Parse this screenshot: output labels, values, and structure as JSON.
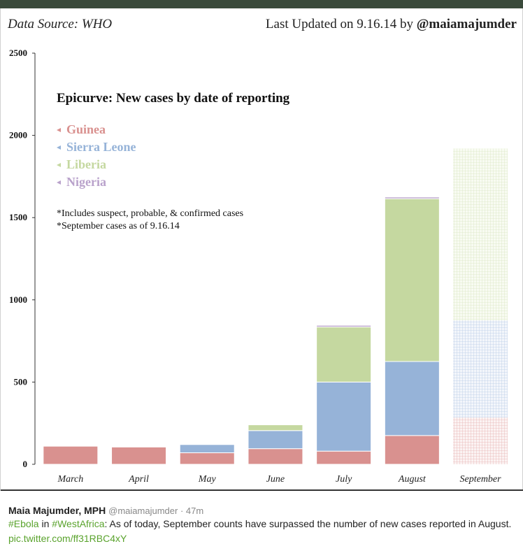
{
  "header": {
    "source_text": "Data Source: WHO",
    "updated_text": "Last Updated on 9.16.14 by",
    "handle": "@maiamajumder"
  },
  "chart_data": {
    "type": "bar",
    "stacked": true,
    "title": "Epicurve: New cases by date of reporting",
    "notes": [
      "*Includes suspect, probable, & confirmed cases",
      "*September cases as of 9.16.14"
    ],
    "categories": [
      "March",
      "April",
      "May",
      "June",
      "July",
      "August",
      "September"
    ],
    "yticks": [
      "0",
      "500",
      "1000",
      "1500",
      "2000",
      "2500"
    ],
    "ylim": [
      0,
      2500
    ],
    "series": [
      {
        "name": "Guinea",
        "color": "#d9918f",
        "values": [
          110,
          105,
          70,
          95,
          80,
          175,
          285
        ]
      },
      {
        "name": "Sierra Leone",
        "color": "#96b3d8",
        "values": [
          0,
          0,
          50,
          110,
          420,
          450,
          590
        ]
      },
      {
        "name": "Liberia",
        "color": "#c5d8a0",
        "values": [
          0,
          0,
          0,
          35,
          335,
          990,
          1045
        ]
      },
      {
        "name": "Nigeria",
        "color": "#b9a2cb",
        "values": [
          0,
          0,
          0,
          0,
          10,
          10,
          0
        ]
      }
    ],
    "partial_category": "September",
    "legend_position": "top-left"
  },
  "tweet": {
    "name": "Maia Majumder, MPH",
    "meta": "@maiamajumder · 47m",
    "hashtag1": "#Ebola",
    "word_in": " in ",
    "hashtag2": "#WestAfrica",
    "text": ": As of today, September counts have surpassed the number of new cases reported in August.",
    "link": "pic.twitter.com/ff31RBC4xY"
  }
}
